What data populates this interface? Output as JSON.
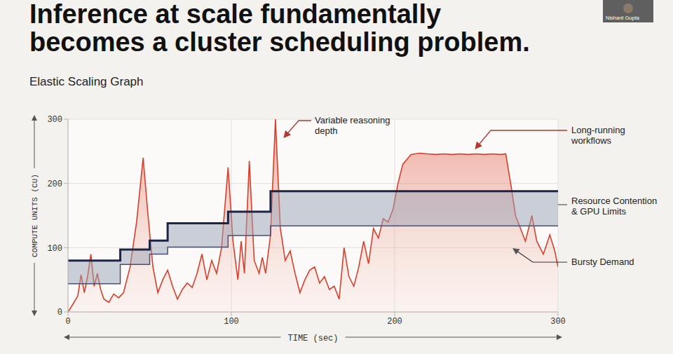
{
  "chart_data": {
    "type": "area",
    "title": "Inference at scale fundamentally becomes a cluster scheduling problem.",
    "subtitle": "Elastic Scaling Graph",
    "x_label": "TIME (sec)",
    "y_label": "COMPUTE UNITS (CU)",
    "xlim": [
      0,
      300
    ],
    "ylim": [
      0,
      300
    ],
    "xticks": [
      0,
      100,
      200,
      300
    ],
    "yticks": [
      0,
      100,
      200,
      300
    ],
    "grid": true,
    "annotations": [
      "Variable reasoning depth",
      "Long-running workflows"
    ],
    "series": [
      {
        "name": "Bursty Demand",
        "type": "area",
        "color": "#d6402c",
        "x": [
          0,
          3,
          6,
          8,
          10,
          12,
          14,
          16,
          18,
          20,
          22,
          25,
          28,
          31,
          34,
          38,
          42,
          46,
          49,
          52,
          55,
          58,
          61,
          64,
          67,
          70,
          73,
          76,
          79,
          82,
          85,
          88,
          91,
          94,
          98,
          101,
          104,
          106,
          108,
          111,
          114,
          117,
          119,
          121,
          124,
          127,
          130,
          133,
          136,
          139,
          142,
          145,
          148,
          151,
          154,
          157,
          160,
          163,
          166,
          169,
          172,
          175,
          178,
          181,
          184,
          187,
          190,
          193,
          196,
          199,
          202,
          205,
          210,
          215,
          220,
          225,
          230,
          235,
          240,
          245,
          250,
          255,
          260,
          265,
          268,
          271,
          274,
          277,
          280,
          284,
          287,
          291,
          295,
          298,
          300
        ],
        "values": [
          0,
          12,
          25,
          58,
          30,
          55,
          90,
          40,
          60,
          35,
          20,
          15,
          28,
          22,
          30,
          70,
          140,
          240,
          150,
          70,
          30,
          50,
          65,
          40,
          20,
          35,
          45,
          38,
          60,
          90,
          50,
          80,
          60,
          100,
          225,
          110,
          50,
          110,
          60,
          235,
          80,
          60,
          85,
          60,
          120,
          300,
          130,
          80,
          95,
          60,
          30,
          50,
          65,
          70,
          45,
          55,
          35,
          40,
          20,
          100,
          55,
          40,
          70,
          110,
          75,
          130,
          115,
          145,
          140,
          160,
          200,
          230,
          245,
          247,
          246,
          245,
          246,
          245,
          246,
          245,
          246,
          245,
          246,
          245,
          246,
          200,
          150,
          130,
          110,
          150,
          110,
          90,
          120,
          95,
          70
        ]
      },
      {
        "name": "Resource Contention & GPU Limits",
        "type": "step",
        "color": "#1e2446",
        "x": [
          0,
          32,
          50,
          61,
          98,
          124,
          300
        ],
        "values": [
          80,
          97,
          111,
          138,
          156,
          188,
          188
        ],
        "lower": [
          44,
          74,
          90,
          101,
          119,
          134,
          134
        ]
      }
    ]
  },
  "presenter": "Nishant Gupta"
}
